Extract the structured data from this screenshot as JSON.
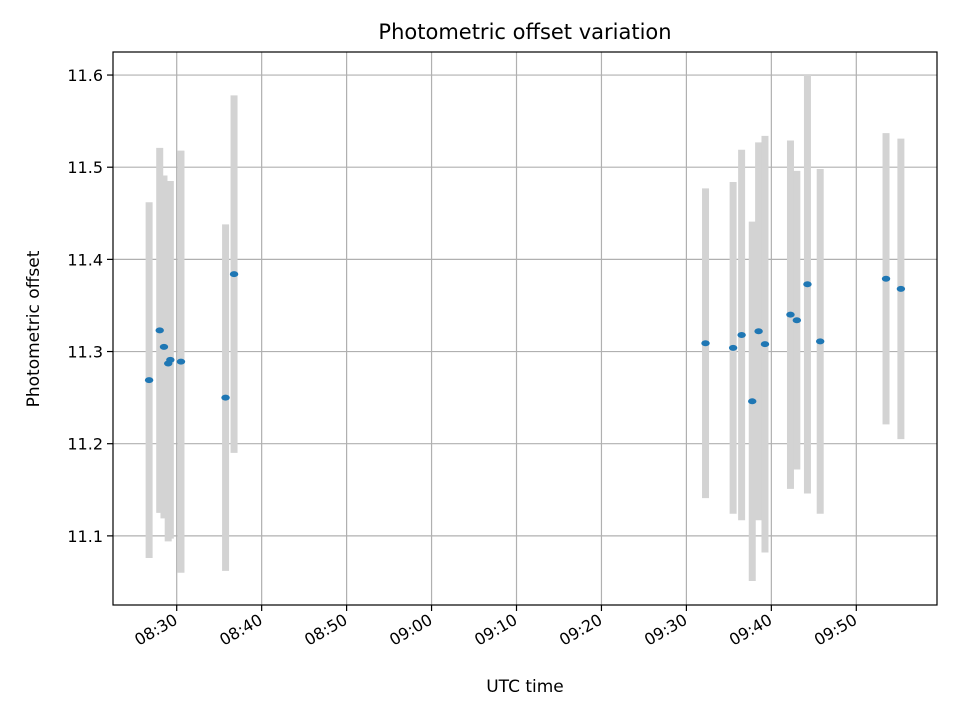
{
  "chart_data": {
    "type": "scatter",
    "title": "Photometric offset variation",
    "xlabel": "UTC time",
    "ylabel": "Photometric offset",
    "xlim": [
      "08:22:30",
      "09:59:30"
    ],
    "ylim": [
      11.025,
      11.625
    ],
    "grid": true,
    "colors": {
      "points": "#1f77b4",
      "errorbars": "#d3d3d3",
      "grid": "#b0b0b0"
    },
    "xticks": [
      "08:30",
      "08:40",
      "08:50",
      "09:00",
      "09:10",
      "09:20",
      "09:30",
      "09:40",
      "09:50"
    ],
    "yticks": [
      "11.1",
      "11.2",
      "11.3",
      "11.4",
      "11.5",
      "11.6"
    ],
    "series": [
      {
        "points": [
          {
            "x": "08:26:45",
            "y": 11.269,
            "yerr": 0.193
          },
          {
            "x": "08:28:00",
            "y": 11.323,
            "yerr": 0.198
          },
          {
            "x": "08:28:30",
            "y": 11.305,
            "yerr": 0.186
          },
          {
            "x": "08:29:00",
            "y": 11.287,
            "yerr": 0.193
          },
          {
            "x": "08:29:15",
            "y": 11.291,
            "yerr": 0.194
          },
          {
            "x": "08:30:30",
            "y": 11.289,
            "yerr": 0.229
          },
          {
            "x": "08:35:45",
            "y": 11.25,
            "yerr": 0.188
          },
          {
            "x": "08:36:45",
            "y": 11.384,
            "yerr": 0.194
          },
          {
            "x": "09:32:15",
            "y": 11.309,
            "yerr": 0.168
          },
          {
            "x": "09:35:30",
            "y": 11.304,
            "yerr": 0.18
          },
          {
            "x": "09:36:30",
            "y": 11.318,
            "yerr": 0.201
          },
          {
            "x": "09:37:45",
            "y": 11.246,
            "yerr": 0.195
          },
          {
            "x": "09:38:30",
            "y": 11.322,
            "yerr": 0.205
          },
          {
            "x": "09:39:15",
            "y": 11.308,
            "yerr": 0.226
          },
          {
            "x": "09:42:15",
            "y": 11.34,
            "yerr": 0.189
          },
          {
            "x": "09:43:00",
            "y": 11.334,
            "yerr": 0.162
          },
          {
            "x": "09:44:15",
            "y": 11.373,
            "yerr": 0.227
          },
          {
            "x": "09:45:45",
            "y": 11.311,
            "yerr": 0.187
          },
          {
            "x": "09:53:30",
            "y": 11.379,
            "yerr": 0.158
          },
          {
            "x": "09:55:15",
            "y": 11.368,
            "yerr": 0.163
          }
        ]
      }
    ]
  }
}
